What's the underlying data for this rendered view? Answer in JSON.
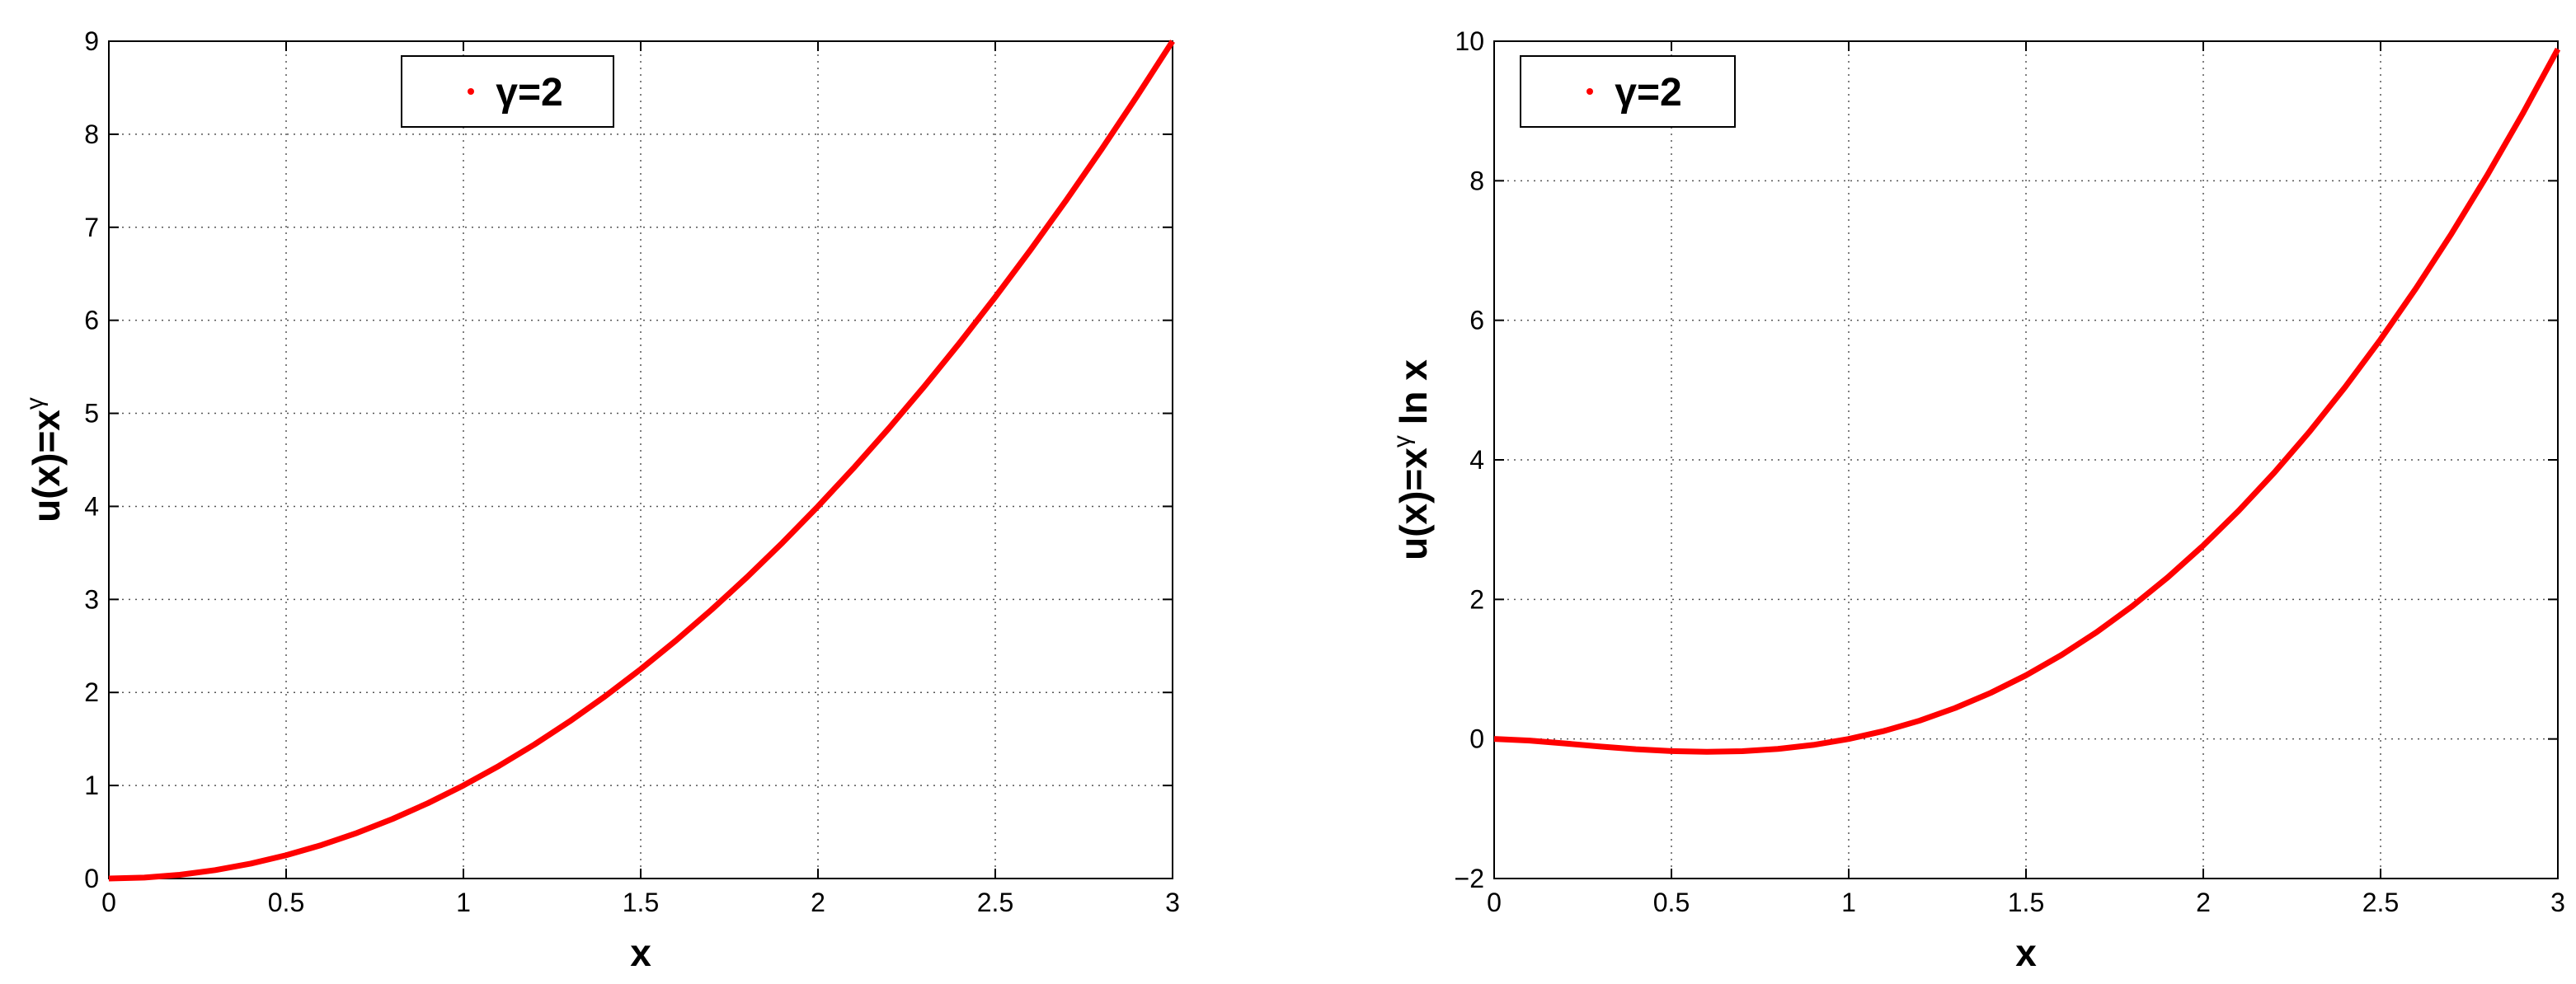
{
  "chart_data": [
    {
      "type": "line",
      "xlabel": "x",
      "ylabel": [
        "u(x)=x",
        "γ"
      ],
      "x": [
        0,
        0.1,
        0.2,
        0.3,
        0.4,
        0.5,
        0.6,
        0.7,
        0.8,
        0.9,
        1,
        1.1,
        1.2,
        1.3,
        1.4,
        1.5,
        1.6,
        1.7,
        1.8,
        1.9,
        2,
        2.1,
        2.2,
        2.3,
        2.4,
        2.5,
        2.6,
        2.7,
        2.8,
        2.9,
        3
      ],
      "series": [
        {
          "name": "γ=2",
          "color": "#ff0000",
          "values": [
            0,
            0.01,
            0.04,
            0.09,
            0.16,
            0.25,
            0.36,
            0.49,
            0.64,
            0.81,
            1,
            1.21,
            1.44,
            1.69,
            1.96,
            2.25,
            2.56,
            2.89,
            3.24,
            3.61,
            4,
            4.41,
            4.84,
            5.29,
            5.76,
            6.25,
            6.76,
            7.29,
            7.84,
            8.41,
            9
          ]
        }
      ],
      "xlim": [
        0,
        3
      ],
      "xticks": [
        0,
        0.5,
        1,
        1.5,
        2,
        2.5,
        3
      ],
      "ylim": [
        0,
        9
      ],
      "yticks": [
        0,
        1,
        2,
        3,
        4,
        5,
        6,
        7,
        8,
        9
      ],
      "grid": true
    },
    {
      "type": "line",
      "xlabel": "x",
      "ylabel": [
        "u(x)=x",
        "γ",
        " ln x"
      ],
      "x": [
        0,
        0.1,
        0.2,
        0.3,
        0.4,
        0.5,
        0.6,
        0.7,
        0.8,
        0.9,
        1,
        1.1,
        1.2,
        1.3,
        1.4,
        1.5,
        1.6,
        1.7,
        1.8,
        1.9,
        2,
        2.1,
        2.2,
        2.3,
        2.4,
        2.5,
        2.6,
        2.7,
        2.8,
        2.9,
        3
      ],
      "series": [
        {
          "name": "γ=2",
          "color": "#ff0000",
          "values": [
            0,
            -0.023,
            -0.0644,
            -0.1084,
            -0.1466,
            -0.1733,
            -0.1839,
            -0.1748,
            -0.1428,
            -0.0853,
            0,
            0.1153,
            0.2625,
            0.4434,
            0.6595,
            0.9123,
            1.2032,
            1.5335,
            1.9044,
            2.3171,
            2.7726,
            3.2719,
            3.8161,
            4.4061,
            5.0427,
            5.7268,
            6.4593,
            7.2408,
            8.0722,
            8.9542,
            9.8875
          ]
        }
      ],
      "xlim": [
        0,
        3
      ],
      "xticks": [
        0,
        0.5,
        1,
        1.5,
        2,
        2.5,
        3
      ],
      "ylim": [
        -2,
        10
      ],
      "yticks": [
        {
          "value": -2,
          "label": "−2"
        },
        0,
        2,
        4,
        6,
        8,
        10
      ],
      "grid": true
    }
  ]
}
